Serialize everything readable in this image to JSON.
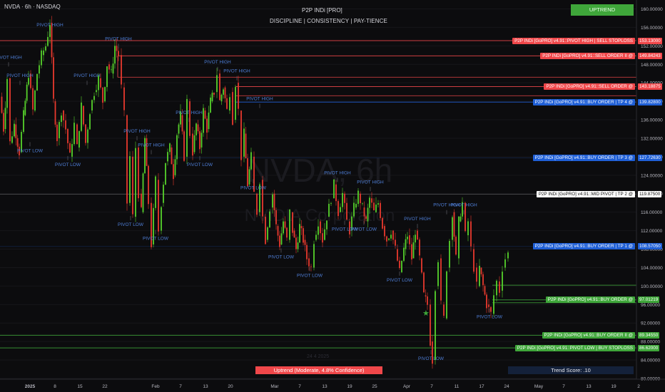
{
  "header": {
    "symbol": "NVDA · 6h · NASDAQ",
    "indicator_title": "P2P INDi [PRO]",
    "tagline": "DISCIPLINE  |  CONSISTENCY  |  PAY-TIENCE",
    "trend_button": "UPTREND",
    "watermark_symbol": "NVDA, 6h",
    "watermark_name": "NVIDIA Corporation"
  },
  "status": {
    "trend_box": "Uptrend (Moderate, 4.8% Confidence)",
    "trend_score": "Trend Score: .10",
    "date_label": "24 4 2025"
  },
  "colors": {
    "up": "#56d22b",
    "down": "#e8392e",
    "sell": "#f0474a",
    "buy_blue": "#1f5fd6",
    "buy_green": "#3fa63a",
    "mid": "#ffffff",
    "pivot_text": "#4f7fd8",
    "trend_button": "#3fa63a",
    "trend_box": "#f0474a"
  },
  "chart_data": {
    "type": "candlestick",
    "symbol": "NVDA",
    "interval": "6h",
    "ylim": [
      80,
      161
    ],
    "y_ticks": [
      80,
      84,
      88,
      92,
      96,
      100,
      104,
      108,
      112,
      116,
      120,
      124,
      128,
      132,
      136,
      140,
      144,
      148,
      152,
      156,
      160
    ],
    "x_ticks": [
      "2025",
      "8",
      "15",
      "22",
      "Feb",
      "7",
      "13",
      "20",
      "Mar",
      "7",
      "13",
      "19",
      "25",
      "Apr",
      "7",
      "11",
      "17",
      "24",
      "May",
      "7",
      "13",
      "19",
      "2"
    ],
    "price_path": [
      [
        0,
        141
      ],
      [
        5,
        134
      ],
      [
        10,
        145
      ],
      [
        14,
        131
      ],
      [
        20,
        135
      ],
      [
        27,
        129
      ],
      [
        33,
        137
      ],
      [
        40,
        146
      ],
      [
        46,
        138
      ],
      [
        52,
        146
      ],
      [
        58,
        150
      ],
      [
        64,
        152
      ],
      [
        70,
        157
      ],
      [
        75,
        140
      ],
      [
        80,
        132
      ],
      [
        86,
        138
      ],
      [
        92,
        134
      ],
      [
        98,
        128
      ],
      [
        104,
        135
      ],
      [
        108,
        130
      ],
      [
        114,
        139
      ],
      [
        120,
        131
      ],
      [
        126,
        138
      ],
      [
        132,
        142
      ],
      [
        138,
        145
      ],
      [
        144,
        140
      ],
      [
        150,
        148
      ],
      [
        156,
        146
      ],
      [
        161,
        152
      ],
      [
        166,
        150
      ],
      [
        170,
        143
      ],
      [
        174,
        137
      ],
      [
        178,
        118
      ],
      [
        182,
        128
      ],
      [
        186,
        115
      ],
      [
        190,
        130
      ],
      [
        194,
        120
      ],
      [
        198,
        116
      ],
      [
        203,
        132
      ],
      [
        208,
        118
      ],
      [
        212,
        109
      ],
      [
        218,
        123
      ],
      [
        222,
        112
      ],
      [
        226,
        118
      ],
      [
        232,
        127
      ],
      [
        238,
        130
      ],
      [
        243,
        124
      ],
      [
        248,
        133
      ],
      [
        253,
        137
      ],
      [
        258,
        128
      ],
      [
        262,
        140
      ],
      [
        266,
        133
      ],
      [
        270,
        129
      ],
      [
        275,
        135
      ],
      [
        280,
        130
      ],
      [
        285,
        138
      ],
      [
        290,
        134
      ],
      [
        295,
        140
      ],
      [
        300,
        142
      ],
      [
        304,
        146
      ],
      [
        308,
        140
      ],
      [
        313,
        143
      ],
      [
        318,
        138
      ],
      [
        322,
        142
      ],
      [
        326,
        136
      ],
      [
        330,
        144
      ],
      [
        334,
        138
      ],
      [
        338,
        128
      ],
      [
        342,
        133
      ],
      [
        347,
        122
      ],
      [
        352,
        128
      ],
      [
        356,
        120
      ],
      [
        360,
        116
      ],
      [
        364,
        123
      ],
      [
        368,
        115
      ],
      [
        372,
        110
      ],
      [
        378,
        117
      ],
      [
        382,
        120
      ],
      [
        387,
        113
      ],
      [
        392,
        109
      ],
      [
        397,
        114
      ],
      [
        402,
        110
      ],
      [
        406,
        116
      ],
      [
        410,
        112
      ],
      [
        415,
        108
      ],
      [
        420,
        113
      ],
      [
        425,
        110
      ],
      [
        430,
        106
      ],
      [
        436,
        104
      ],
      [
        440,
        110
      ],
      [
        446,
        114
      ],
      [
        452,
        110
      ],
      [
        458,
        115
      ],
      [
        464,
        119
      ],
      [
        468,
        122
      ],
      [
        474,
        116
      ],
      [
        480,
        120
      ],
      [
        486,
        114
      ],
      [
        490,
        112
      ],
      [
        496,
        117
      ],
      [
        502,
        120
      ],
      [
        508,
        117
      ],
      [
        513,
        114
      ],
      [
        518,
        119
      ],
      [
        524,
        116
      ],
      [
        530,
        118
      ],
      [
        536,
        113
      ],
      [
        542,
        110
      ],
      [
        548,
        112
      ],
      [
        554,
        108
      ],
      [
        560,
        103
      ],
      [
        566,
        108
      ],
      [
        571,
        111
      ],
      [
        577,
        106
      ],
      [
        582,
        112
      ],
      [
        588,
        106
      ],
      [
        594,
        98
      ],
      [
        599,
        96
      ],
      [
        603,
        88
      ],
      [
        606,
        84
      ],
      [
        610,
        100
      ],
      [
        614,
        106
      ],
      [
        618,
        96
      ],
      [
        622,
        93
      ],
      [
        626,
        104
      ],
      [
        630,
        110
      ],
      [
        634,
        116
      ],
      [
        639,
        106
      ],
      [
        643,
        114
      ],
      [
        648,
        118
      ],
      [
        652,
        111
      ],
      [
        656,
        114
      ],
      [
        660,
        108
      ],
      [
        664,
        104
      ],
      [
        668,
        100
      ],
      [
        672,
        104
      ],
      [
        677,
        100
      ],
      [
        682,
        96
      ],
      [
        688,
        94
      ],
      [
        692,
        98
      ],
      [
        696,
        101
      ],
      [
        700,
        99
      ],
      [
        704,
        104
      ],
      [
        708,
        106
      ],
      [
        712,
        107
      ]
    ],
    "levels": [
      {
        "name": "P2P INDi [GoPRO] v4.91::PIVOT HIGH | SELL STOPLOSS",
        "value": 153.13,
        "value_label": "153.13000",
        "kind": "sell"
      },
      {
        "name": "P2P INDi [GoPRO] v4.91::SELL ORDER II @",
        "value": 149.84243,
        "value_label": "149.84243",
        "kind": "sell"
      },
      {
        "name": "P2P INDi [GoPRO] v4.91::SELL ORDER @",
        "value": 143.18875,
        "value_label": "143.18875",
        "kind": "sell"
      },
      {
        "name": "P2P INDi [GoPRO] v4.91::BUY ORDER | TP 4 @",
        "value": 139.828,
        "value_label": "139.82800",
        "kind": "buy_blue"
      },
      {
        "name": "P2P INDi [GoPRO] v4.91::BUY ORDER | TP 3 @",
        "value": 127.7263,
        "value_label": "127.72630",
        "kind": "buy_blue"
      },
      {
        "name": "P2P INDi [GoPRO] v4.91::MID PIVOT | TP 2 @",
        "value": 119.875,
        "value_label": "119.87500",
        "kind": "mid"
      },
      {
        "name": "P2P INDi [GoPRO] v4.91::BUY ORDER | TP 1 @",
        "value": 108.5705,
        "value_label": "108.57050",
        "kind": "buy_blue"
      },
      {
        "name": "P2P INDi [GoPRO] v4.91::BUY ORDER @",
        "value": 97.01219,
        "value_label": "97.01219",
        "kind": "buy_green"
      },
      {
        "name": "P2P INDi [GoPRO] v4.91::BUY ORDER II @",
        "value": 89.3455,
        "value_label": "89.34550",
        "kind": "buy_green"
      },
      {
        "name": "P2P INDi [GoPRO] v4.91::PIVOT LOW | BUY STOPLOSS",
        "value": 86.62,
        "value_label": "86.62000",
        "kind": "buy_green"
      }
    ],
    "pivots": [
      {
        "label": "PIVOT HIGH",
        "x": 70,
        "price": 157,
        "type": "high"
      },
      {
        "label": "PIVOT HIGH",
        "x": 12,
        "price": 150,
        "type": "high"
      },
      {
        "label": "PIVOT HIGH",
        "x": 28,
        "price": 146,
        "type": "high"
      },
      {
        "label": "PIVOT HIGH",
        "x": 122,
        "price": 146,
        "type": "high"
      },
      {
        "label": "PIVOT HIGH",
        "x": 166,
        "price": 154,
        "type": "high"
      },
      {
        "label": "PIVOT HIGH",
        "x": 192,
        "price": 134,
        "type": "high"
      },
      {
        "label": "PIVOT HIGH",
        "x": 212,
        "price": 131,
        "type": "high"
      },
      {
        "label": "PIVOT HIGH",
        "x": 265,
        "price": 138,
        "type": "high"
      },
      {
        "label": "PIVOT HIGH",
        "x": 305,
        "price": 149,
        "type": "high"
      },
      {
        "label": "PIVOT HIGH",
        "x": 332,
        "price": 147,
        "type": "high"
      },
      {
        "label": "PIVOT HIGH",
        "x": 364,
        "price": 141,
        "type": "high"
      },
      {
        "label": "PIVOT HIGH",
        "x": 473,
        "price": 125,
        "type": "high"
      },
      {
        "label": "PIVOT HIGH",
        "x": 519,
        "price": 123,
        "type": "high"
      },
      {
        "label": "PIVOT HIGH",
        "x": 585,
        "price": 115,
        "type": "high"
      },
      {
        "label": "PIVOT HIGH",
        "x": 626,
        "price": 118,
        "type": "high"
      },
      {
        "label": "PIVOT HIGH",
        "x": 650,
        "price": 118,
        "type": "high"
      },
      {
        "label": "PIVOT LOW",
        "x": 42,
        "price": 129,
        "type": "low"
      },
      {
        "label": "PIVOT LOW",
        "x": 95,
        "price": 126,
        "type": "low"
      },
      {
        "label": "PIVOT LOW",
        "x": 183,
        "price": 113,
        "type": "low"
      },
      {
        "label": "PIVOT LOW",
        "x": 218,
        "price": 110,
        "type": "low"
      },
      {
        "label": "PIVOT LOW",
        "x": 280,
        "price": 126,
        "type": "low"
      },
      {
        "label": "PIVOT LOW",
        "x": 355,
        "price": 121,
        "type": "low"
      },
      {
        "label": "PIVOT LOW",
        "x": 394,
        "price": 106,
        "type": "low"
      },
      {
        "label": "PIVOT LOW",
        "x": 434,
        "price": 102,
        "type": "low"
      },
      {
        "label": "PIVOT LOW",
        "x": 483,
        "price": 112,
        "type": "low"
      },
      {
        "label": "PIVOT LOW",
        "x": 510,
        "price": 112,
        "type": "low"
      },
      {
        "label": "PIVOT LOW",
        "x": 560,
        "price": 101,
        "type": "low"
      },
      {
        "label": "PIVOT LOW",
        "x": 604,
        "price": 84,
        "type": "low"
      },
      {
        "label": "PIVOT LOW",
        "x": 686,
        "price": 93,
        "type": "low"
      }
    ]
  }
}
